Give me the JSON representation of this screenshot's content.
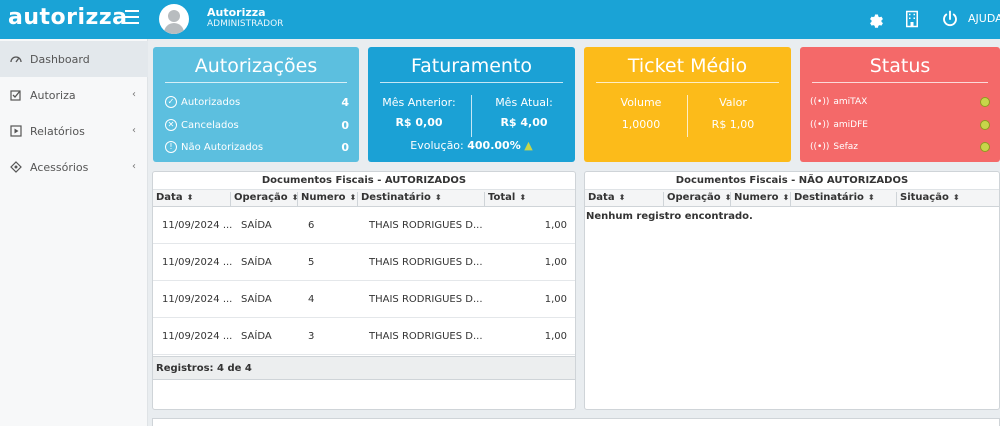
{
  "brand": {
    "logo": "autorizza",
    "accent": "#1aa3d6"
  },
  "header": {
    "user_name": "Autorizza",
    "user_role": "ADMINISTRADOR",
    "help_label": "AJUDA",
    "icons": [
      "menu-icon",
      "gear-icon",
      "building-icon",
      "power-icon"
    ]
  },
  "sidebar": {
    "items": [
      {
        "label": "Dashboard",
        "icon": "dashboard-icon"
      },
      {
        "label": "Autoriza",
        "icon": "checkbox-icon"
      },
      {
        "label": "Relatórios",
        "icon": "play-icon"
      },
      {
        "label": "Acessórios",
        "icon": "gem-icon"
      }
    ]
  },
  "cards": {
    "autorizacoes": {
      "title": "Autorizações",
      "rows": [
        {
          "label": "Autorizados",
          "value": "4"
        },
        {
          "label": "Cancelados",
          "value": "0"
        },
        {
          "label": "Não Autorizados",
          "value": "0"
        }
      ]
    },
    "faturamento": {
      "title": "Faturamento",
      "prev_label": "Mês Anterior:",
      "prev_value": "R$ 0,00",
      "curr_label": "Mês Atual:",
      "curr_value": "R$ 4,00",
      "evo_label": "Evolução:",
      "evo_value": "400.00%"
    },
    "ticket": {
      "title": "Ticket Médio",
      "vol_label": "Volume",
      "vol_value": "1,0000",
      "val_label": "Valor",
      "val_value": "R$ 1,00"
    },
    "status": {
      "title": "Status",
      "rows": [
        {
          "label": "amiTAX"
        },
        {
          "label": "amiDFE"
        },
        {
          "label": "Sefaz"
        }
      ]
    }
  },
  "autorizados": {
    "title": "Documentos Fiscais - AUTORIZADOS",
    "columns": [
      "Data",
      "Operação",
      "Numero",
      "Destinatário",
      "Total"
    ],
    "rows": [
      [
        "11/09/2024 ...",
        "SAÍDA",
        "6",
        "THAIS RODRIGUES D...",
        "1,00"
      ],
      [
        "11/09/2024 ...",
        "SAÍDA",
        "5",
        "THAIS RODRIGUES D...",
        "1,00"
      ],
      [
        "11/09/2024 ...",
        "SAÍDA",
        "4",
        "THAIS RODRIGUES D...",
        "1,00"
      ],
      [
        "11/09/2024 ...",
        "SAÍDA",
        "3",
        "THAIS RODRIGUES D...",
        "1,00"
      ]
    ],
    "footer": "Registros: 4 de 4"
  },
  "nao_autorizados": {
    "title": "Documentos Fiscais - NÃO AUTORIZADOS",
    "columns": [
      "Data",
      "Operação",
      "Numero",
      "Destinatário",
      "Situação"
    ],
    "empty": "Nenhum registro encontrado."
  }
}
